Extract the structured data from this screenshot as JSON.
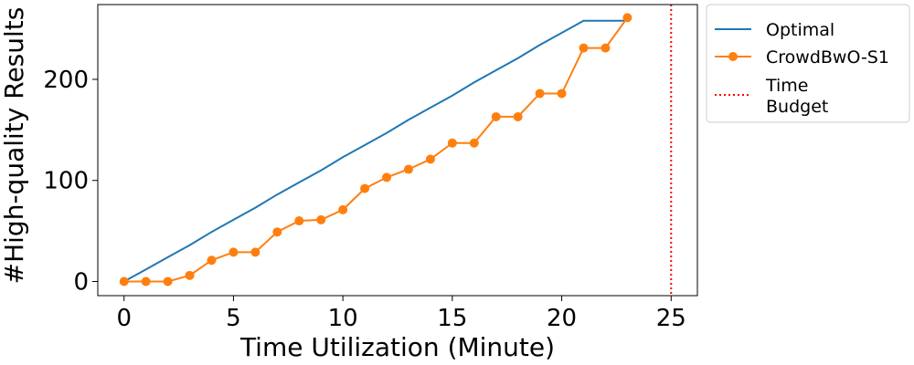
{
  "chart_data": {
    "type": "line",
    "xlabel": "Time Utilization (Minute)",
    "ylabel": "#High-quality Results",
    "xlim": [
      -1.2,
      26.2
    ],
    "ylim": [
      -14,
      274
    ],
    "xticks": [
      0,
      5,
      10,
      15,
      20,
      25
    ],
    "yticks": [
      0,
      100,
      200
    ],
    "series": [
      {
        "name": "Optimal",
        "color": "#1f77b4",
        "marker": "none",
        "x": [
          0,
          1,
          2,
          3,
          4,
          5,
          6,
          7,
          8,
          9,
          10,
          11,
          12,
          13,
          14,
          15,
          16,
          17,
          18,
          19,
          20,
          21,
          22,
          23
        ],
        "y": [
          0,
          12,
          24,
          36,
          49,
          61,
          73,
          86,
          98,
          110,
          123,
          135,
          147,
          160,
          172,
          184,
          197,
          209,
          221,
          234,
          246,
          258,
          258,
          258
        ]
      },
      {
        "name": "CrowdBwO-S1",
        "color": "#ff7f0e",
        "marker": "circle",
        "x": [
          0,
          1,
          2,
          3,
          4,
          5,
          6,
          7,
          8,
          9,
          10,
          11,
          12,
          13,
          14,
          15,
          16,
          17,
          18,
          19,
          20,
          21,
          22,
          23
        ],
        "y": [
          0,
          0,
          0,
          6,
          21,
          29,
          29,
          49,
          60,
          61,
          71,
          92,
          103,
          111,
          121,
          137,
          137,
          163,
          163,
          186,
          186,
          231,
          231,
          261
        ]
      }
    ],
    "reference_line": {
      "name": "Time\nBudget",
      "x": 25,
      "color": "#ff0000",
      "style": "dotted"
    },
    "legend": {
      "placement": "outside-right-top",
      "labels": [
        "Optimal",
        "CrowdBwO-S1",
        "Time",
        "Budget"
      ]
    }
  }
}
